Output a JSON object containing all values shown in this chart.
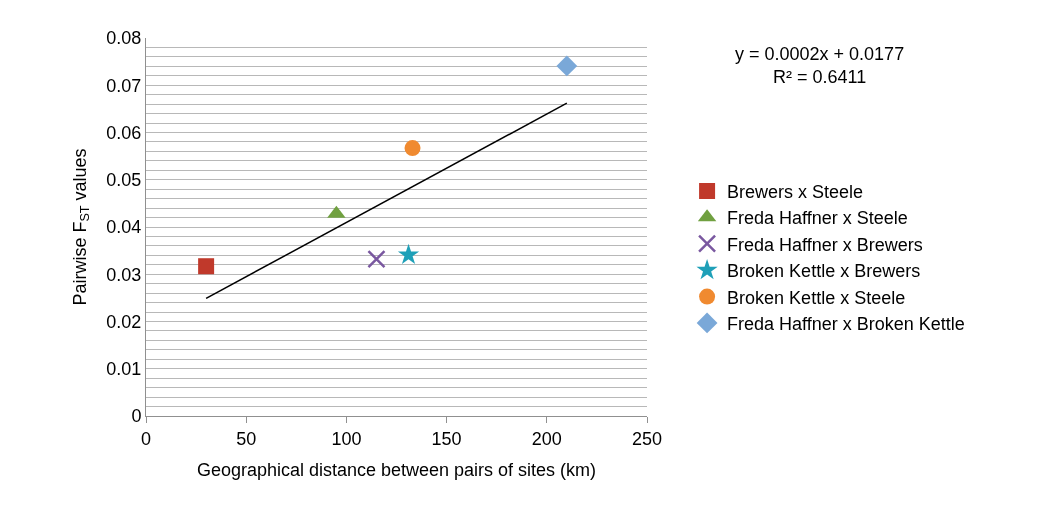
{
  "chart_data": {
    "type": "scatter",
    "xlabel": "Geographical distance between pairs of sites (km)",
    "ylabel": "Pairwise F$_{ST}$ values",
    "xlim": [
      0,
      250
    ],
    "xticks": [
      0,
      50,
      100,
      150,
      200,
      250
    ],
    "ylim": [
      0,
      0.08
    ],
    "yticks": [
      0,
      {
        "value": 0.002,
        "label": null
      },
      {
        "value": 0.004,
        "label": null
      },
      {
        "value": 0.006,
        "label": null
      },
      {
        "value": 0.008,
        "label": null
      },
      0.01,
      {
        "value": 0.012,
        "label": null
      },
      {
        "value": 0.014,
        "label": null
      },
      {
        "value": 0.016,
        "label": null
      },
      {
        "value": 0.018,
        "label": null
      },
      0.02,
      {
        "value": 0.022,
        "label": null
      },
      {
        "value": 0.024,
        "label": null
      },
      {
        "value": 0.026,
        "label": null
      },
      {
        "value": 0.028,
        "label": null
      },
      0.03,
      {
        "value": 0.032,
        "label": null
      },
      {
        "value": 0.034,
        "label": null
      },
      {
        "value": 0.036,
        "label": null
      },
      {
        "value": 0.038,
        "label": null
      },
      0.04,
      {
        "value": 0.042,
        "label": null
      },
      {
        "value": 0.044,
        "label": null
      },
      {
        "value": 0.046,
        "label": null
      },
      {
        "value": 0.048,
        "label": null
      },
      0.05,
      {
        "value": 0.052,
        "label": null
      },
      {
        "value": 0.054,
        "label": null
      },
      {
        "value": 0.056,
        "label": null
      },
      {
        "value": 0.058,
        "label": null
      },
      0.06,
      {
        "value": 0.062,
        "label": null
      },
      {
        "value": 0.064,
        "label": null
      },
      {
        "value": 0.066,
        "label": null
      },
      {
        "value": 0.068,
        "label": null
      },
      0.07,
      {
        "value": 0.072,
        "label": null
      },
      {
        "value": 0.074,
        "label": null
      },
      {
        "value": 0.076,
        "label": null
      },
      {
        "value": 0.078,
        "label": null
      },
      0.08
    ],
    "grid": "y",
    "legend": "right",
    "annotations": [
      "y = 0.0002x + 0.0177\nR² = 0.6411"
    ],
    "series": [
      {
        "name": "Brewers x Steele",
        "color": "#c0392b",
        "marker": "square",
        "x": [
          30
        ],
        "values": [
          0.0317
        ]
      },
      {
        "name": "Freda Haffner x Steele",
        "color": "#70a040",
        "marker": "triangle",
        "x": [
          95
        ],
        "values": [
          0.0428
        ]
      },
      {
        "name": "Freda Haffner x Brewers",
        "color": "#7a58a0",
        "marker": "cross",
        "x": [
          115
        ],
        "values": [
          0.0332
        ]
      },
      {
        "name": "Broken Kettle x Brewers",
        "color": "#1fa0b8",
        "marker": "star",
        "x": [
          131
        ],
        "values": [
          0.0341
        ]
      },
      {
        "name": "Broken Kettle x Steele",
        "color": "#f08a30",
        "marker": "circle",
        "x": [
          133
        ],
        "values": [
          0.0567
        ]
      },
      {
        "name": "Freda Haffner x Broken Kettle",
        "color": "#7aa8d8",
        "marker": "diamond",
        "x": [
          210
        ],
        "values": [
          0.0741
        ]
      },
      {
        "type": "line",
        "color": "#000000",
        "marker": "none",
        "x": [
          30,
          210
        ],
        "values": [
          0.0249,
          0.0662
        ]
      }
    ]
  }
}
